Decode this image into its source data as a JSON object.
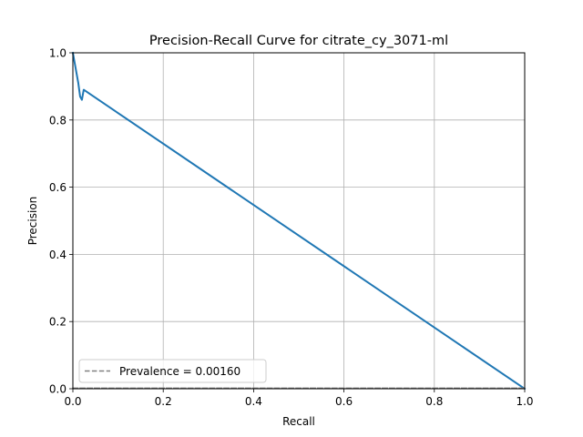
{
  "chart_data": {
    "type": "line",
    "title": "Precision-Recall Curve for citrate_cy_3071-ml",
    "xlabel": "Recall",
    "ylabel": "Precision",
    "xlim": [
      0,
      1
    ],
    "ylim": [
      0,
      1
    ],
    "x_ticks": [
      "0.0",
      "0.2",
      "0.4",
      "0.6",
      "0.8",
      "1.0"
    ],
    "y_ticks": [
      "0.0",
      "0.2",
      "0.4",
      "0.6",
      "0.8",
      "1.0"
    ],
    "grid": true,
    "legend_position": "lower-left",
    "series": [
      {
        "name": "",
        "color": "#1f77b4",
        "style": "solid",
        "x": [
          0.0,
          0.004,
          0.008,
          0.012,
          0.016,
          0.02,
          0.024,
          1.0
        ],
        "y": [
          1.0,
          0.97,
          0.94,
          0.91,
          0.87,
          0.86,
          0.89,
          0.0
        ]
      },
      {
        "name": "Prevalence = 0.00160",
        "color": "#808080",
        "style": "dashed",
        "x": [
          0.0,
          1.0
        ],
        "y": [
          0.0016,
          0.0016
        ]
      }
    ]
  }
}
